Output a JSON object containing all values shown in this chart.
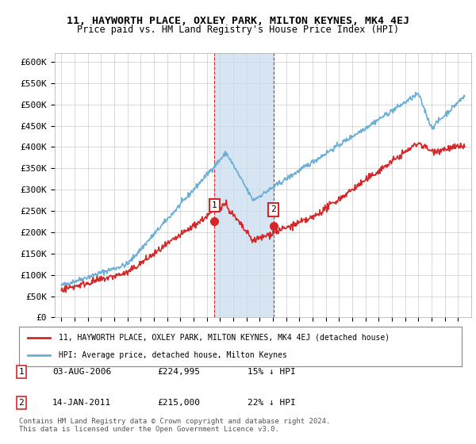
{
  "title": "11, HAYWORTH PLACE, OXLEY PARK, MILTON KEYNES, MK4 4EJ",
  "subtitle": "Price paid vs. HM Land Registry's House Price Index (HPI)",
  "ylabel": "",
  "xlabel": "",
  "ylim": [
    0,
    620000
  ],
  "yticks": [
    0,
    50000,
    100000,
    150000,
    200000,
    250000,
    300000,
    350000,
    400000,
    450000,
    500000,
    550000,
    600000
  ],
  "ytick_labels": [
    "£0",
    "£50K",
    "£100K",
    "£150K",
    "£200K",
    "£250K",
    "£300K",
    "£350K",
    "£400K",
    "£450K",
    "£500K",
    "£550K",
    "£600K"
  ],
  "sale1_date": 2006.58,
  "sale1_price": 224995,
  "sale1_label": "1",
  "sale2_date": 2011.04,
  "sale2_price": 215000,
  "sale2_label": "2",
  "hpi_color": "#6baed6",
  "price_color": "#d62728",
  "highlight_color": "#c6dbef",
  "legend_line1": "11, HAYWORTH PLACE, OXLEY PARK, MILTON KEYNES, MK4 4EJ (detached house)",
  "legend_line2": "HPI: Average price, detached house, Milton Keynes",
  "table_row1": [
    "1",
    "03-AUG-2006",
    "£224,995",
    "15% ↓ HPI"
  ],
  "table_row2": [
    "2",
    "14-JAN-2011",
    "£215,000",
    "22% ↓ HPI"
  ],
  "footnote": "Contains HM Land Registry data © Crown copyright and database right 2024.\nThis data is licensed under the Open Government Licence v3.0.",
  "bg_color": "#ffffff",
  "plot_bg": "#ffffff",
  "grid_color": "#cccccc"
}
